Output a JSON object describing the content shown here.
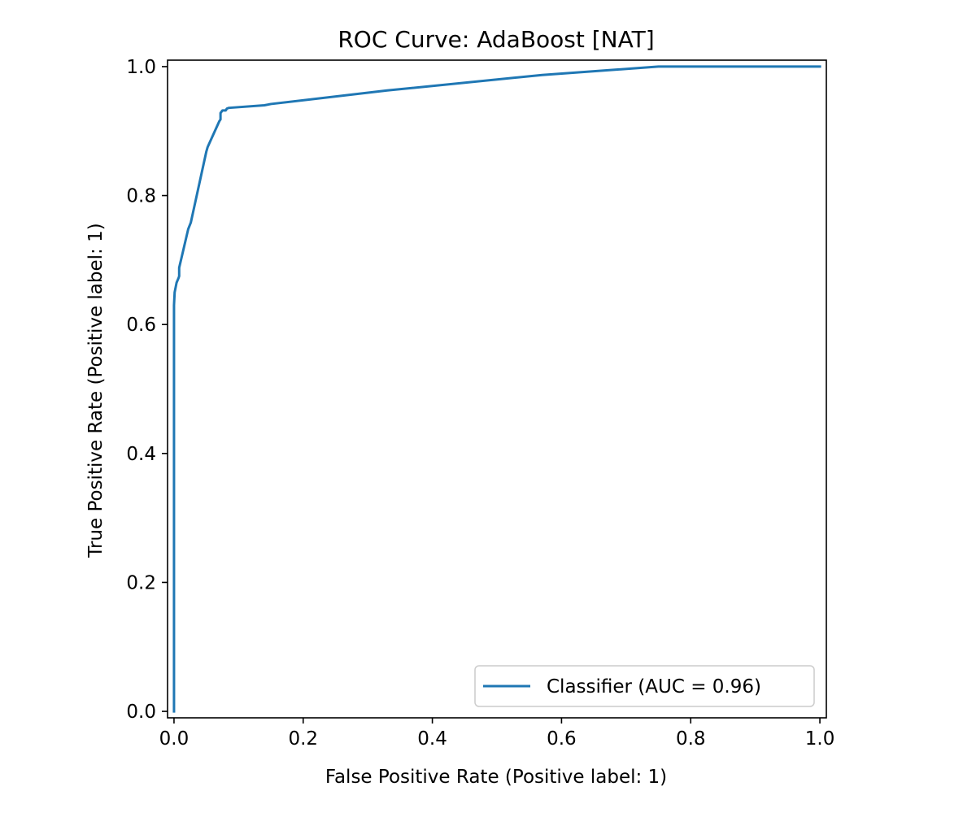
{
  "chart_data": {
    "type": "line",
    "title": "ROC Curve: AdaBoost [NAT]",
    "xlabel": "False Positive Rate (Positive label: 1)",
    "ylabel": "True Positive Rate (Positive label: 1)",
    "xlim": [
      -0.01,
      1.01
    ],
    "ylim": [
      -0.01,
      1.01
    ],
    "xticks": [
      0.0,
      0.2,
      0.4,
      0.6,
      0.8,
      1.0
    ],
    "yticks": [
      0.0,
      0.2,
      0.4,
      0.6,
      0.8,
      1.0
    ],
    "xtick_labels": [
      "0.0",
      "0.2",
      "0.4",
      "0.6",
      "0.8",
      "1.0"
    ],
    "ytick_labels": [
      "0.0",
      "0.2",
      "0.4",
      "0.6",
      "0.8",
      "1.0"
    ],
    "grid": false,
    "legend_position": "lower-right",
    "series": [
      {
        "name": "Classifier (AUC = 0.96)",
        "color": "#1f77b4",
        "x": [
          0.0,
          0.0,
          0.0,
          0.001,
          0.002,
          0.004,
          0.007,
          0.008,
          0.008,
          0.015,
          0.022,
          0.026,
          0.05,
          0.052,
          0.07,
          0.072,
          0.072,
          0.075,
          0.08,
          0.082,
          0.085,
          0.14,
          0.15,
          0.33,
          0.57,
          0.75,
          1.0
        ],
        "y": [
          0.0,
          0.33,
          0.63,
          0.65,
          0.655,
          0.665,
          0.672,
          0.675,
          0.688,
          0.718,
          0.748,
          0.758,
          0.868,
          0.875,
          0.915,
          0.918,
          0.928,
          0.932,
          0.932,
          0.935,
          0.936,
          0.94,
          0.942,
          0.963,
          0.987,
          1.0,
          1.0
        ]
      }
    ]
  },
  "legend": {
    "entries": [
      {
        "label": "Classifier (AUC = 0.96)",
        "color": "#1f77b4"
      }
    ]
  }
}
